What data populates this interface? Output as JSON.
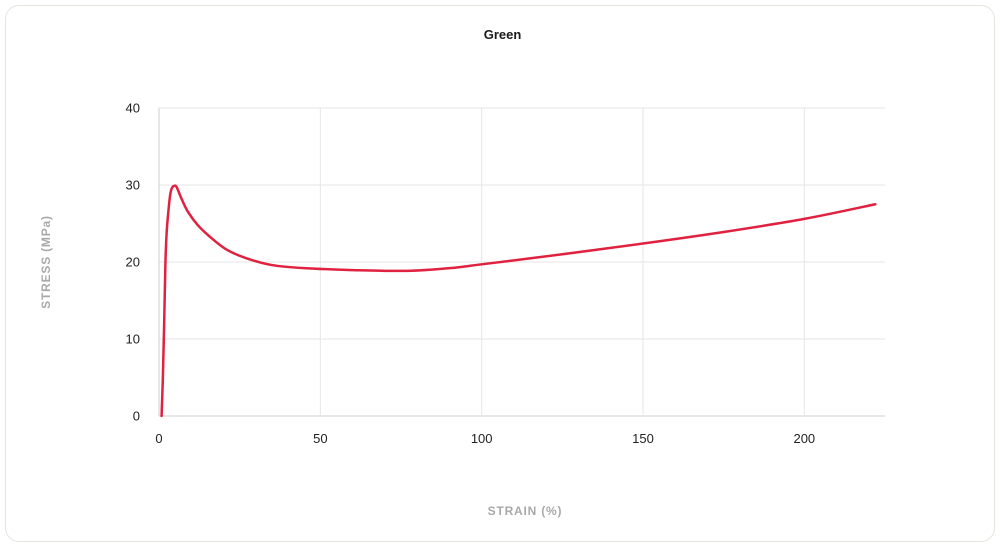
{
  "chart_data": {
    "type": "line",
    "title": "Green",
    "xlabel": "STRAIN (%)",
    "ylabel": "STRESS (MPa)",
    "xlim": [
      0,
      225
    ],
    "ylim": [
      0,
      40
    ],
    "x_ticks": [
      0,
      50,
      100,
      150,
      200
    ],
    "y_ticks": [
      0,
      10,
      20,
      30,
      40
    ],
    "grid": true,
    "legend": "none",
    "series": [
      {
        "color": "#e0213f",
        "points": [
          [
            0.8,
            0
          ],
          [
            1.2,
            5
          ],
          [
            1.6,
            12
          ],
          [
            2.0,
            20
          ],
          [
            2.4,
            24
          ],
          [
            3.0,
            27
          ],
          [
            3.5,
            28.8
          ],
          [
            4.0,
            29.6
          ],
          [
            4.8,
            29.9
          ],
          [
            5.5,
            29.7
          ],
          [
            7.0,
            28.2
          ],
          [
            9.0,
            26.5
          ],
          [
            12.0,
            24.8
          ],
          [
            16.0,
            23.2
          ],
          [
            21.0,
            21.6
          ],
          [
            27.0,
            20.5
          ],
          [
            35.0,
            19.6
          ],
          [
            45.0,
            19.2
          ],
          [
            60.0,
            18.95
          ],
          [
            77.0,
            18.85
          ],
          [
            90.0,
            19.2
          ],
          [
            100.0,
            19.7
          ],
          [
            125.0,
            21.0
          ],
          [
            150.0,
            22.4
          ],
          [
            175.0,
            23.9
          ],
          [
            200.0,
            25.6
          ],
          [
            222.0,
            27.5
          ]
        ]
      }
    ]
  }
}
